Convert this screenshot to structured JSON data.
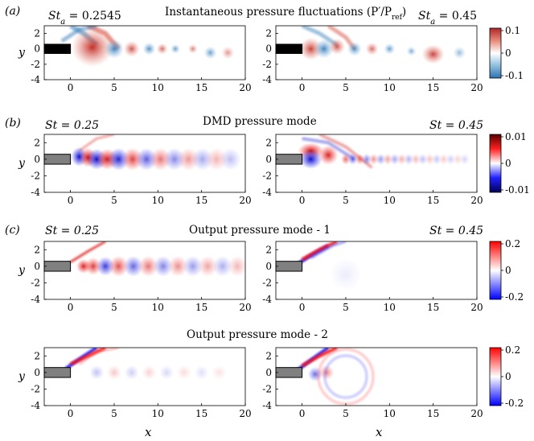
{
  "figure": {
    "panel_labels": [
      "(a)",
      "(b)",
      "(c)"
    ],
    "row_titles": [
      "Instantaneous pressure fluctuations (P′/P",
      "DMD pressure mode",
      "Output pressure mode - 1",
      "Output pressure mode - 2"
    ],
    "title_a_sub": "ref",
    "title_a_close": ")",
    "st_labels": {
      "a_left": "St",
      "a_left_sub": "a",
      "a_left_val": " = 0.2545",
      "a_right": "St",
      "a_right_sub": "a",
      "a_right_val": " = 0.45",
      "b_left": "St = 0.25",
      "b_right": "St = 0.45",
      "c_left": "St = 0.25",
      "c_right": "St = 0.45"
    },
    "xlabel": "x",
    "ylabel": "y"
  },
  "chart_data": {
    "type": "heatmap",
    "x_ticks": [
      "0",
      "5",
      "10",
      "15",
      "20"
    ],
    "y_ticks": [
      "2",
      "0",
      "-2",
      "-4"
    ],
    "xlim": [
      -3,
      20
    ],
    "ylim": [
      -4,
      3
    ],
    "colorbars": [
      {
        "row": "a",
        "ticks": [
          "0.1",
          "0",
          "-0.1"
        ],
        "range": [
          -0.1,
          0.1
        ],
        "low_color": "#3a7cb8",
        "mid_color": "#ffffff",
        "high_color": "#c4302b"
      },
      {
        "row": "b",
        "ticks": [
          "0.01",
          "0",
          "-0.01"
        ],
        "range": [
          -0.01,
          0.01
        ],
        "low_color": "#00007a",
        "mid_color": "#ffffff",
        "high_color": "#7a0000"
      },
      {
        "row": "c1",
        "ticks": [
          "0.2",
          "0",
          "-0.2"
        ],
        "range": [
          -0.2,
          0.2
        ],
        "low_color": "#0000ff",
        "mid_color": "#ffffff",
        "high_color": "#ff0000"
      },
      {
        "row": "c2",
        "ticks": [
          "0.2",
          "0",
          "-0.2"
        ],
        "range": [
          -0.2,
          0.2
        ],
        "low_color": "#0000ff",
        "mid_color": "#ffffff",
        "high_color": "#ff0000"
      }
    ],
    "panels": [
      {
        "id": "a-left",
        "st": 0.2545,
        "field": "instantaneous pressure fluctuation"
      },
      {
        "id": "a-right",
        "st": 0.45,
        "field": "instantaneous pressure fluctuation"
      },
      {
        "id": "b-left",
        "st": 0.25,
        "field": "DMD pressure mode"
      },
      {
        "id": "b-right",
        "st": 0.45,
        "field": "DMD pressure mode"
      },
      {
        "id": "c1-left",
        "st": 0.25,
        "field": "output pressure mode 1"
      },
      {
        "id": "c1-right",
        "st": 0.45,
        "field": "output pressure mode 1"
      },
      {
        "id": "c2-left",
        "st": 0.25,
        "field": "output pressure mode 2"
      },
      {
        "id": "c2-right",
        "st": 0.45,
        "field": "output pressure mode 2"
      }
    ]
  }
}
